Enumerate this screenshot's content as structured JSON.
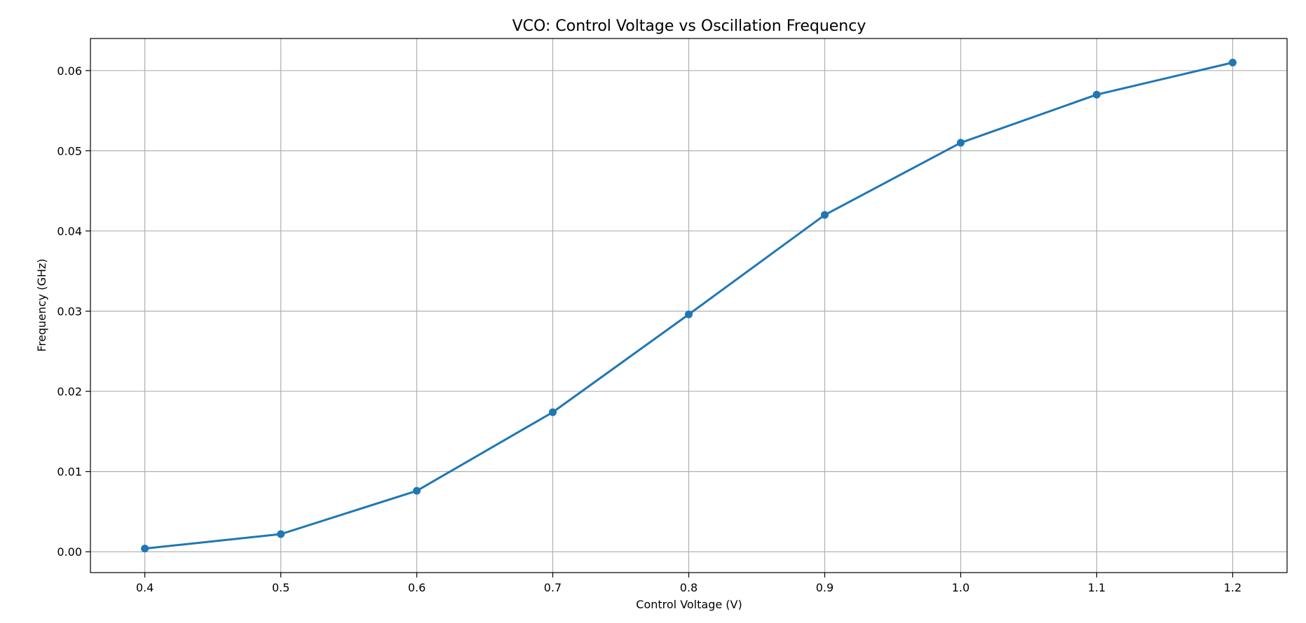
{
  "chart_data": {
    "type": "line",
    "title": "VCO: Control Voltage vs Oscillation Frequency",
    "xlabel": "Control Voltage (V)",
    "ylabel": "Frequency (GHz)",
    "x": [
      0.4,
      0.5,
      0.6,
      0.7,
      0.8,
      0.9,
      1.0,
      1.1,
      1.2
    ],
    "series": [
      {
        "values": [
          0.0004,
          0.0022,
          0.0076,
          0.0174,
          0.0296,
          0.042,
          0.051,
          0.057,
          0.061
        ],
        "color": "#1f77b4",
        "marker": "circle"
      }
    ],
    "xlim": [
      0.36,
      1.24
    ],
    "ylim": [
      -0.0026,
      0.064
    ],
    "xticks": [
      0.4,
      0.5,
      0.6,
      0.7,
      0.8,
      0.9,
      1.0,
      1.1,
      1.2
    ],
    "xtick_labels": [
      "0.4",
      "0.5",
      "0.6",
      "0.7",
      "0.8",
      "0.9",
      "1.0",
      "1.1",
      "1.2"
    ],
    "yticks": [
      0.0,
      0.01,
      0.02,
      0.03,
      0.04,
      0.05,
      0.06
    ],
    "ytick_labels": [
      "0.00",
      "0.01",
      "0.02",
      "0.03",
      "0.04",
      "0.05",
      "0.06"
    ],
    "grid": true,
    "legend": "none"
  }
}
